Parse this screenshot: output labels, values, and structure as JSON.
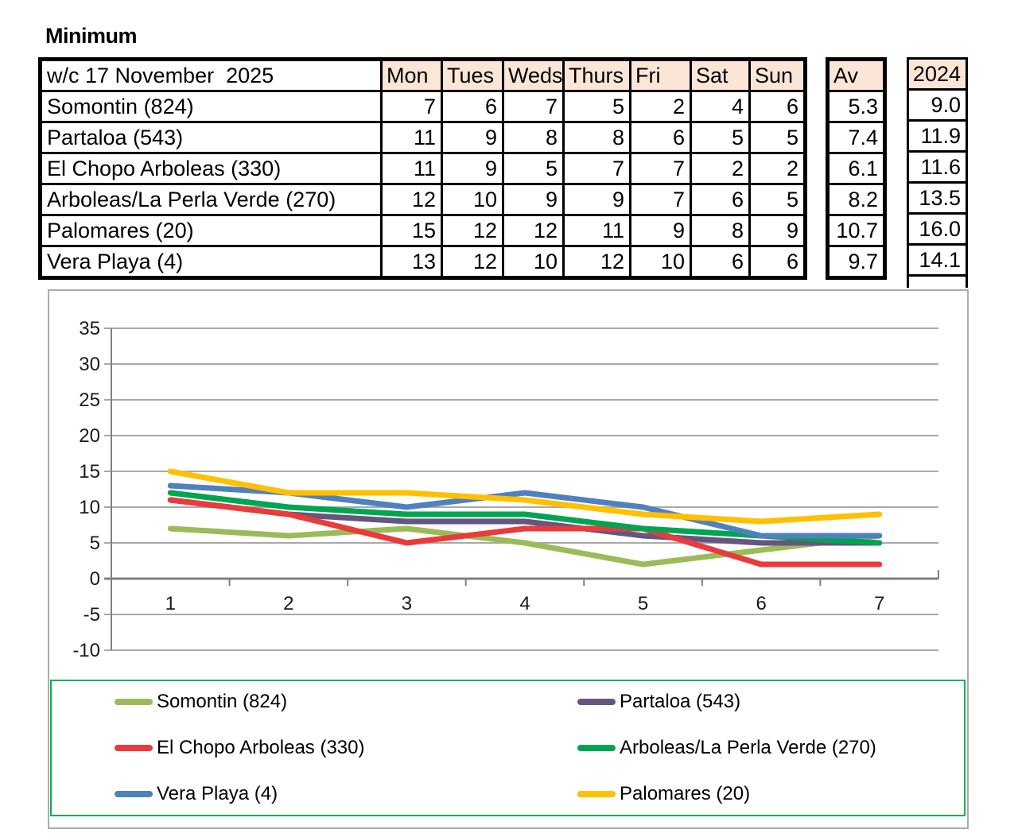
{
  "title": "Minimum",
  "table": {
    "corner_label": "w/c 17 November  2025",
    "day_headers": [
      "Mon",
      "Tues",
      "Weds",
      "Thurs",
      "Fri",
      "Sat",
      "Sun"
    ],
    "avg_header": "Av",
    "prev_year_header": "2024",
    "rows": [
      {
        "name": "Somontin (824)",
        "values": [
          7,
          6,
          7,
          5,
          2,
          4,
          6
        ],
        "avg": "5.3",
        "prev_year": "9.0"
      },
      {
        "name": "Partaloa (543)",
        "values": [
          11,
          9,
          8,
          8,
          6,
          5,
          5
        ],
        "avg": "7.4",
        "prev_year": "11.9"
      },
      {
        "name": "El Chopo Arboleas (330)",
        "values": [
          11,
          9,
          5,
          7,
          7,
          2,
          2
        ],
        "avg": "6.1",
        "prev_year": "11.6"
      },
      {
        "name": "Arboleas/La Perla Verde (270)",
        "values": [
          12,
          10,
          9,
          9,
          7,
          6,
          5
        ],
        "avg": "8.2",
        "prev_year": "13.5"
      },
      {
        "name": "Palomares (20)",
        "values": [
          15,
          12,
          12,
          11,
          9,
          8,
          9
        ],
        "avg": "10.7",
        "prev_year": "16.0"
      },
      {
        "name": "Vera Playa (4)",
        "values": [
          13,
          12,
          10,
          12,
          10,
          6,
          6
        ],
        "avg": "9.7",
        "prev_year": "14.1"
      }
    ]
  },
  "colors": {
    "table_header_fill": "#FBE5D6",
    "table_border": "#000000",
    "grid_line": "#A9A9A9",
    "axis_line": "#7F7F7F",
    "chart_box_border": "#ABABAB",
    "legend_border": "#00B050",
    "tick_label": "#1A1A1A"
  },
  "chart_data": {
    "type": "line",
    "x": [
      "1",
      "2",
      "3",
      "4",
      "5",
      "6",
      "7"
    ],
    "y_ticks": [
      35,
      30,
      25,
      20,
      15,
      10,
      5,
      0,
      -5,
      -10
    ],
    "ylim": [
      -10,
      35
    ],
    "grid": true,
    "legend_position": "bottom",
    "series": [
      {
        "name": "Somontin (824)",
        "color": "#9BBB59",
        "values": [
          7,
          6,
          7,
          5,
          2,
          4,
          6
        ]
      },
      {
        "name": "Partaloa (543)",
        "color": "#66557F",
        "values": [
          11,
          9,
          8,
          8,
          6,
          5,
          5
        ]
      },
      {
        "name": "El Chopo Arboleas (330)",
        "color": "#E93B3C",
        "values": [
          11,
          9,
          5,
          7,
          7,
          2,
          2
        ]
      },
      {
        "name": "Arboleas/La Perla Verde (270)",
        "color": "#00A552",
        "values": [
          12,
          10,
          9,
          9,
          7,
          6,
          5
        ]
      },
      {
        "name": "Vera Playa (4)",
        "color": "#4F81BD",
        "values": [
          13,
          12,
          10,
          12,
          10,
          6,
          6
        ]
      },
      {
        "name": "Palomares (20)",
        "color": "#FFC000",
        "values": [
          15,
          12,
          12,
          11,
          9,
          8,
          9
        ]
      }
    ],
    "legend_rows": [
      [
        "Somontin (824)",
        "Partaloa (543)"
      ],
      [
        "El Chopo Arboleas (330)",
        "Arboleas/La Perla Verde (270)"
      ],
      [
        "Vera Playa (4)",
        "Palomares (20)"
      ]
    ]
  }
}
